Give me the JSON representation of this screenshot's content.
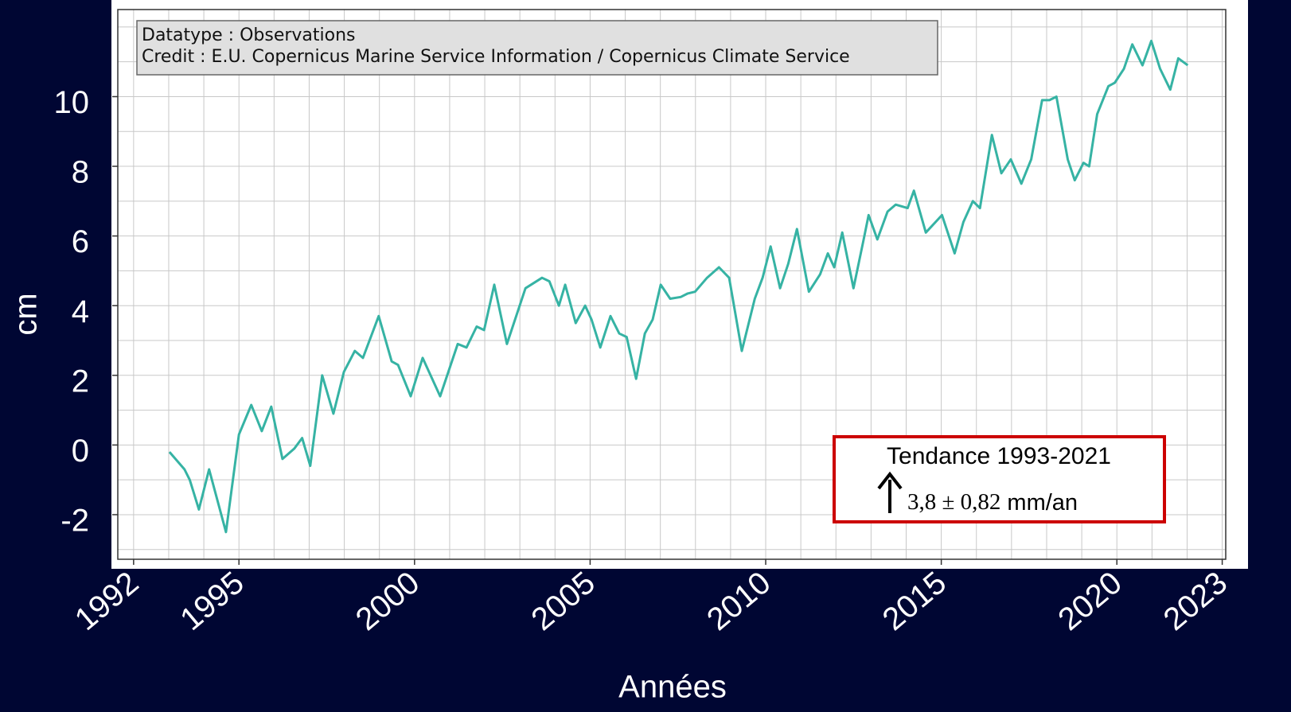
{
  "chart_data": {
    "type": "line",
    "xlabel": "Années",
    "ylabel": "cm",
    "legend_lines": [
      "Datatype : Observations",
      "Credit : E.U. Copernicus Marine Service Information / Copernicus Climate Service"
    ],
    "annotation": {
      "title": "Tendance 1993-2021",
      "value": "3,8 ± 0,82",
      "unit": "mm/an"
    },
    "xlim": [
      1991.55,
      2023.1
    ],
    "ylim": [
      -3.28,
      12.5
    ],
    "xticks": [
      1992,
      1995,
      2000,
      2005,
      2010,
      2015,
      2020,
      2023
    ],
    "yticks": [
      -2,
      0,
      2,
      4,
      6,
      8,
      10
    ],
    "grid": true,
    "xgrid_step": 1,
    "ygrid_step": 1,
    "series": [
      {
        "name": "Observations",
        "color": "#36b3a4",
        "x": [
          1993.02,
          1993.45,
          1993.6,
          1993.86,
          1994.15,
          1994.63,
          1995.0,
          1995.35,
          1995.65,
          1995.92,
          1996.24,
          1996.58,
          1996.8,
          1997.03,
          1997.37,
          1997.69,
          1997.99,
          1998.3,
          1998.53,
          1998.98,
          1999.35,
          1999.53,
          1999.89,
          2000.23,
          2000.73,
          2001.23,
          2001.48,
          2001.77,
          2001.98,
          2002.27,
          2002.63,
          2003.16,
          2003.63,
          2003.84,
          2004.11,
          2004.29,
          2004.59,
          2004.86,
          2005.04,
          2005.29,
          2005.58,
          2005.83,
          2006.04,
          2006.31,
          2006.56,
          2006.78,
          2007.01,
          2007.28,
          2007.58,
          2007.78,
          2007.99,
          2008.33,
          2008.67,
          2008.96,
          2009.32,
          2009.69,
          2009.91,
          2010.14,
          2010.41,
          2010.64,
          2010.89,
          2011.23,
          2011.55,
          2011.77,
          2011.95,
          2012.18,
          2012.5,
          2012.79,
          2012.93,
          2013.18,
          2013.47,
          2013.7,
          2014.04,
          2014.22,
          2014.56,
          2015.02,
          2015.38,
          2015.63,
          2015.9,
          2016.1,
          2016.44,
          2016.71,
          2016.98,
          2017.28,
          2017.56,
          2017.87,
          2018.08,
          2018.28,
          2018.6,
          2018.8,
          2019.05,
          2019.21,
          2019.44,
          2019.76,
          2019.94,
          2020.2,
          2020.44,
          2020.73,
          2020.98,
          2021.23,
          2021.52,
          2021.75,
          2022.02
        ],
        "values": [
          -0.2,
          -0.7,
          -1.0,
          -1.85,
          -0.7,
          -2.5,
          0.3,
          1.15,
          0.4,
          1.1,
          -0.4,
          -0.1,
          0.2,
          -0.6,
          2.0,
          0.9,
          2.1,
          2.7,
          2.5,
          3.7,
          2.4,
          2.3,
          1.4,
          2.5,
          1.4,
          2.9,
          2.8,
          3.4,
          3.3,
          4.6,
          2.9,
          4.5,
          4.8,
          4.7,
          4.0,
          4.6,
          3.5,
          4.0,
          3.6,
          2.8,
          3.7,
          3.2,
          3.1,
          1.9,
          3.2,
          3.6,
          4.6,
          4.2,
          4.25,
          4.35,
          4.4,
          4.8,
          5.1,
          4.8,
          2.7,
          4.2,
          4.8,
          5.7,
          4.5,
          5.2,
          6.2,
          4.4,
          4.9,
          5.5,
          5.1,
          6.1,
          4.5,
          5.9,
          6.6,
          5.9,
          6.7,
          6.9,
          6.8,
          7.3,
          6.1,
          6.6,
          5.5,
          6.4,
          7.0,
          6.8,
          8.9,
          7.8,
          8.2,
          7.5,
          8.2,
          9.9,
          9.9,
          10.0,
          8.2,
          7.6,
          8.1,
          8.0,
          9.5,
          10.3,
          10.4,
          10.8,
          11.5,
          10.9,
          11.6,
          10.8,
          10.2,
          11.1,
          10.9
        ]
      }
    ]
  }
}
